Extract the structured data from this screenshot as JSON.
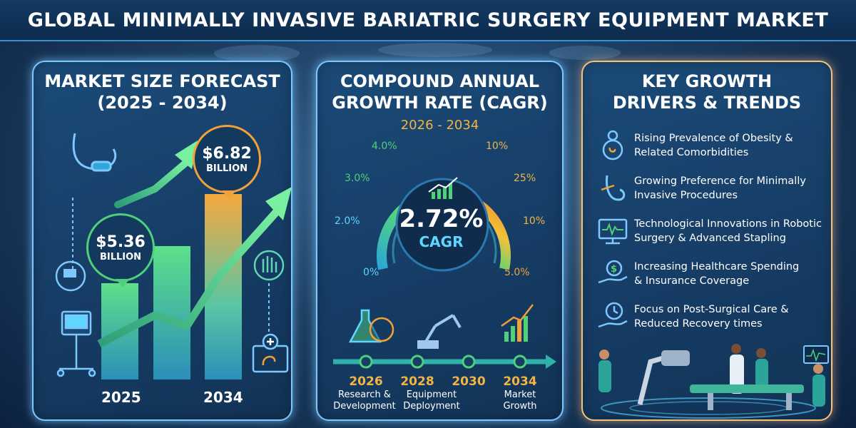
{
  "title": "GLOBAL MINIMALLY INVASIVE BARIATRIC SURGERY EQUIPMENT MARKET",
  "market_size": {
    "title_line1": "MARKET SIZE FORECAST",
    "title_line2": "(2025 - 2034)",
    "start": {
      "value": "$5.36",
      "unit": "BILLION",
      "year": "2025"
    },
    "end": {
      "value": "$6.82",
      "unit": "BILLION",
      "year": "2034"
    }
  },
  "cagr": {
    "title_line1": "COMPOUND ANNUAL",
    "title_line2": "GROWTH RATE (CAGR)",
    "period": "2026 - 2034",
    "value": "2.72%",
    "label": "CAGR",
    "gauge_left": [
      "4.0%",
      "3.0%",
      "2.0%",
      "0%"
    ],
    "gauge_right": [
      "10%",
      "25%",
      "10%",
      "5.0%"
    ],
    "timeline": [
      {
        "year": "2026",
        "label_1": "Research &",
        "label_2": "Development"
      },
      {
        "year": "2028",
        "label_1": "Equipment",
        "label_2": "Deployment"
      },
      {
        "year": "2030",
        "label_1": "",
        "label_2": ""
      },
      {
        "year": "2034",
        "label_1": "Market",
        "label_2": "Growth"
      }
    ]
  },
  "drivers": {
    "title_line1": "KEY GROWTH",
    "title_line2": "DRIVERS & TRENDS",
    "items": [
      {
        "line1": "Rising Prevalence of Obesity &",
        "line2": "Related Comorbidities",
        "icon": "body-icon"
      },
      {
        "line1": "Growing Preference for Minimally",
        "line2": "Invasive Procedures",
        "icon": "stomach-icon"
      },
      {
        "line1": "Technological Innovations in Robotic",
        "line2": "Surgery & Advanced Stapling",
        "icon": "monitor-icon"
      },
      {
        "line1": "Increasing Healthcare Spending",
        "line2": "& Insurance Coverage",
        "icon": "money-hand-icon"
      },
      {
        "line1": "Focus on Post-Surgical Care &",
        "line2": "Reduced Recovery times",
        "icon": "clock-hand-icon"
      }
    ]
  },
  "colors": {
    "accent_blue": "#7ec7ff",
    "accent_orange": "#f2a03a",
    "green": "#4fd07a",
    "teal": "#3ab0c8"
  }
}
